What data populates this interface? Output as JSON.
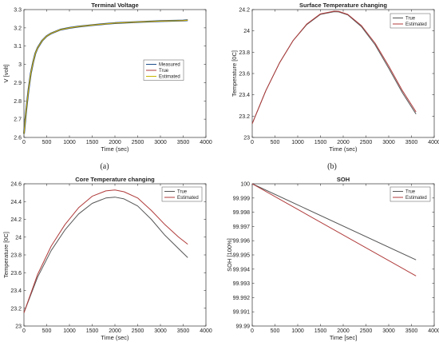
{
  "chart_data": [
    {
      "type": "line",
      "title": "Terminal Voltage",
      "xlabel": "Time (sec)",
      "ylabel": "V [volt]",
      "xlim": [
        0,
        4000
      ],
      "ylim": [
        2.6,
        3.3
      ],
      "xticks": [
        "0",
        "500",
        "1000",
        "1500",
        "2000",
        "2500",
        "3000",
        "3500",
        "4000"
      ],
      "yticks": [
        "2.6",
        "2.7",
        "2.8",
        "2.9",
        "3",
        "3.1",
        "3.2",
        "3.3"
      ],
      "legend_position": "right",
      "caption": "(a)",
      "series": [
        {
          "name": "Measured",
          "color": "#1f4e8a",
          "x": [
            0,
            50,
            100,
            150,
            200,
            250,
            300,
            400,
            500,
            600,
            800,
            1000,
            1200,
            1500,
            1800,
            2000,
            2500,
            3000,
            3500,
            3600
          ],
          "y": [
            2.62,
            2.75,
            2.86,
            2.95,
            3.01,
            3.06,
            3.09,
            3.13,
            3.155,
            3.17,
            3.19,
            3.2,
            3.207,
            3.215,
            3.222,
            3.226,
            3.232,
            3.237,
            3.24,
            3.242
          ]
        },
        {
          "name": "True",
          "color": "#b03a3a",
          "x": [
            0,
            50,
            100,
            150,
            200,
            250,
            300,
            400,
            500,
            600,
            800,
            1000,
            1200,
            1500,
            1800,
            2000,
            2500,
            3000,
            3500,
            3600
          ],
          "y": [
            2.62,
            2.75,
            2.86,
            2.95,
            3.01,
            3.06,
            3.09,
            3.13,
            3.155,
            3.17,
            3.19,
            3.2,
            3.207,
            3.215,
            3.222,
            3.226,
            3.232,
            3.237,
            3.24,
            3.242
          ]
        },
        {
          "name": "Estimated",
          "color": "#c8b400",
          "x": [
            0,
            50,
            100,
            150,
            200,
            250,
            300,
            400,
            500,
            600,
            800,
            1000,
            1200,
            1500,
            1800,
            2000,
            2500,
            3000,
            3500,
            3600
          ],
          "y": [
            2.62,
            2.75,
            2.86,
            2.95,
            3.01,
            3.06,
            3.09,
            3.13,
            3.155,
            3.17,
            3.19,
            3.2,
            3.207,
            3.215,
            3.222,
            3.226,
            3.232,
            3.237,
            3.24,
            3.242
          ]
        }
      ]
    },
    {
      "type": "line",
      "title": "Surface Temperature changing",
      "xlabel": "Time (sec)",
      "ylabel": "Temperature [0C]",
      "xlim": [
        0,
        4000
      ],
      "ylim": [
        23,
        24.2
      ],
      "xticks": [
        "0",
        "500",
        "1000",
        "1500",
        "2000",
        "2500",
        "3000",
        "3500",
        "4000"
      ],
      "yticks": [
        "23",
        "23.2",
        "23.4",
        "23.6",
        "23.8",
        "24",
        "24.2"
      ],
      "legend_position": "top-right",
      "caption": "(b)",
      "series": [
        {
          "name": "True",
          "color": "#555555",
          "x": [
            0,
            300,
            600,
            900,
            1200,
            1500,
            1800,
            1900,
            2100,
            2400,
            2700,
            3000,
            3300,
            3600
          ],
          "y": [
            23.13,
            23.44,
            23.7,
            23.91,
            24.06,
            24.155,
            24.18,
            24.178,
            24.15,
            24.04,
            23.87,
            23.65,
            23.42,
            23.22
          ]
        },
        {
          "name": "Estimated",
          "color": "#b03a3a",
          "x": [
            0,
            300,
            600,
            900,
            1200,
            1500,
            1800,
            1900,
            2100,
            2400,
            2700,
            3000,
            3300,
            3600
          ],
          "y": [
            23.13,
            23.44,
            23.7,
            23.91,
            24.065,
            24.16,
            24.185,
            24.183,
            24.155,
            24.05,
            23.885,
            23.67,
            23.44,
            23.24
          ]
        }
      ]
    },
    {
      "type": "line",
      "title": "Core Temperature changing",
      "xlabel": "Time (sec)",
      "ylabel": "Temperature [0C]",
      "xlim": [
        0,
        4000
      ],
      "ylim": [
        23,
        24.6
      ],
      "xticks": [
        "0",
        "500",
        "1000",
        "1500",
        "2000",
        "2500",
        "3000",
        "3500",
        "4000"
      ],
      "yticks": [
        "23",
        "23.2",
        "23.4",
        "23.6",
        "23.8",
        "24",
        "24.2",
        "24.4",
        "24.6"
      ],
      "legend_position": "top-right",
      "caption": "",
      "series": [
        {
          "name": "True",
          "color": "#555555",
          "x": [
            0,
            300,
            600,
            900,
            1200,
            1500,
            1800,
            2000,
            2200,
            2500,
            2800,
            3100,
            3400,
            3600
          ],
          "y": [
            23.15,
            23.55,
            23.85,
            24.08,
            24.26,
            24.38,
            24.44,
            24.45,
            24.43,
            24.35,
            24.2,
            24.02,
            23.87,
            23.77
          ]
        },
        {
          "name": "Estimated",
          "color": "#b03a3a",
          "x": [
            0,
            300,
            600,
            900,
            1200,
            1500,
            1800,
            2000,
            2200,
            2500,
            2800,
            3100,
            3400,
            3600
          ],
          "y": [
            23.15,
            23.58,
            23.9,
            24.14,
            24.33,
            24.46,
            24.52,
            24.53,
            24.51,
            24.44,
            24.3,
            24.14,
            24.0,
            23.92
          ]
        }
      ]
    },
    {
      "type": "line",
      "title": "SOH",
      "xlabel": "Time [sec]",
      "ylabel": "SOH [100%]",
      "xlim": [
        0,
        4000
      ],
      "ylim": [
        99.99,
        100
      ],
      "xticks": [
        "0",
        "500",
        "1000",
        "1500",
        "2000",
        "2500",
        "3000",
        "3500",
        "4000"
      ],
      "yticks": [
        "99.99",
        "99.991",
        "99.992",
        "99.993",
        "99.994",
        "99.995",
        "99.996",
        "99.997",
        "99.998",
        "99.999",
        "100"
      ],
      "legend_position": "top-right",
      "caption": "",
      "series": [
        {
          "name": "True",
          "color": "#555555",
          "x": [
            0,
            3600
          ],
          "y": [
            100,
            99.99465
          ]
        },
        {
          "name": "Estimated",
          "color": "#b03a3a",
          "x": [
            0,
            3600
          ],
          "y": [
            100,
            99.99352
          ]
        }
      ]
    }
  ]
}
